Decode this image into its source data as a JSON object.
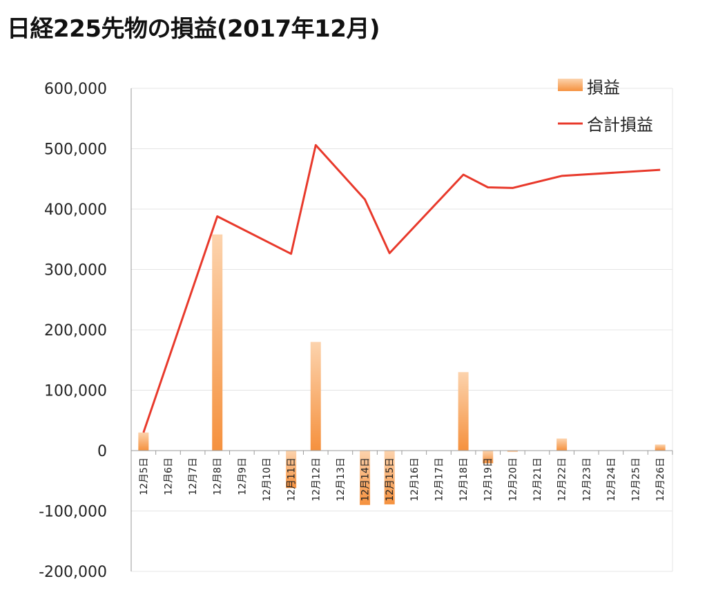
{
  "chart_data": {
    "type": "bar",
    "title": "日経225先物の損益(2017年12月)",
    "categories": [
      "12月5日",
      "12月6日",
      "12月7日",
      "12月8日",
      "12月9日",
      "12月10日",
      "12月11日",
      "12月12日",
      "12月13日",
      "12月14日",
      "12月15日",
      "12月16日",
      "12月17日",
      "12月18日",
      "12月19日",
      "12月20日",
      "12月21日",
      "12月22日",
      "12月23日",
      "12月24日",
      "12月25日",
      "12月26日"
    ],
    "series": [
      {
        "name": "損益",
        "kind": "bar",
        "values": [
          30000,
          0,
          0,
          358000,
          0,
          0,
          -62000,
          180000,
          0,
          -90000,
          -89000,
          0,
          0,
          130000,
          -21000,
          -1000,
          0,
          20000,
          0,
          0,
          0,
          10000
        ]
      },
      {
        "name": "合計損益",
        "kind": "line",
        "connect_only": [
          0,
          3,
          6,
          7,
          9,
          10,
          13,
          14,
          15,
          17,
          21
        ],
        "values": [
          30000,
          null,
          null,
          388000,
          null,
          null,
          326000,
          506000,
          null,
          416000,
          327000,
          null,
          null,
          457000,
          436000,
          435000,
          null,
          455000,
          null,
          null,
          null,
          465000
        ]
      }
    ],
    "yticks": [
      "600,000",
      "500,000",
      "400,000",
      "300,000",
      "200,000",
      "100,000",
      "0",
      "-100,000",
      "-200,000"
    ],
    "ylim": [
      -200000,
      600000
    ],
    "grid": true,
    "legend": "top-right",
    "colors": {
      "bar_top": "#fcd3ad",
      "bar_bottom": "#f5913e",
      "line": "#e8392b",
      "grid": "#e4e4e4",
      "axis": "#999999"
    }
  }
}
